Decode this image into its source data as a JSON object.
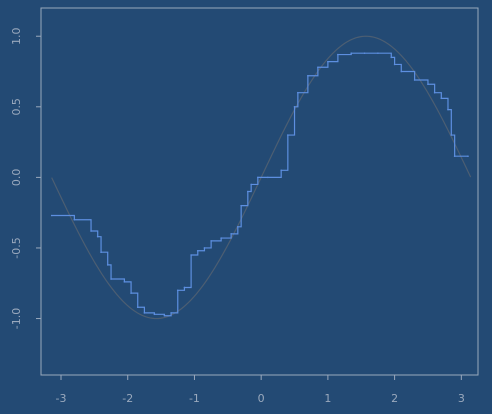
{
  "chart_data": {
    "type": "line",
    "title": "",
    "xlabel": "",
    "ylabel": "",
    "xlim": [
      -3.3,
      3.25
    ],
    "ylim": [
      -1.4,
      1.2
    ],
    "x_ticks": [
      -3,
      -2,
      -1,
      0,
      1,
      2,
      3
    ],
    "x_tick_labels": [
      "-3",
      "-2",
      "-1",
      "0",
      "1",
      "2",
      "3"
    ],
    "y_ticks": [
      -1.0,
      -0.5,
      0.0,
      0.5,
      1.0
    ],
    "y_tick_labels": [
      "-1.0",
      "-0.5",
      "0.0",
      "0.5",
      "1.0"
    ],
    "y_tick_labels_rotated": true,
    "grid": false,
    "legend": "none",
    "colors": {
      "background": "#234a74",
      "axis": "#9aa9bd",
      "smooth_curve": "#4c5e72",
      "step_series": "#5d8fe0"
    },
    "series": [
      {
        "kind": "curve",
        "function": "sin(x)",
        "x_range": [
          -3.14,
          3.14
        ],
        "color": "#4c5e72"
      },
      {
        "kind": "step",
        "color": "#5d8fe0",
        "x": [
          -3.14,
          -2.8,
          -2.55,
          -2.45,
          -2.4,
          -2.3,
          -2.25,
          -2.05,
          -1.95,
          -1.85,
          -1.75,
          -1.6,
          -1.45,
          -1.35,
          -1.25,
          -1.15,
          -1.05,
          -0.95,
          -0.85,
          -0.75,
          -0.6,
          -0.45,
          -0.35,
          -0.3,
          -0.2,
          -0.15,
          -0.05,
          0.1,
          0.3,
          0.4,
          0.5,
          0.55,
          0.7,
          0.85,
          1.0,
          1.15,
          1.35,
          1.55,
          1.75,
          1.95,
          2.0,
          2.1,
          2.3,
          2.5,
          2.6,
          2.7,
          2.8,
          2.85,
          2.9,
          3.1
        ],
        "y": [
          -0.27,
          -0.3,
          -0.38,
          -0.42,
          -0.53,
          -0.62,
          -0.72,
          -0.74,
          -0.82,
          -0.92,
          -0.96,
          -0.97,
          -0.98,
          -0.96,
          -0.8,
          -0.78,
          -0.55,
          -0.52,
          -0.5,
          -0.45,
          -0.43,
          -0.4,
          -0.35,
          -0.2,
          -0.1,
          -0.05,
          0.0,
          0.0,
          0.05,
          0.3,
          0.5,
          0.6,
          0.72,
          0.78,
          0.82,
          0.87,
          0.88,
          0.88,
          0.88,
          0.85,
          0.8,
          0.75,
          0.69,
          0.66,
          0.6,
          0.56,
          0.48,
          0.3,
          0.15,
          0.15
        ]
      }
    ]
  }
}
